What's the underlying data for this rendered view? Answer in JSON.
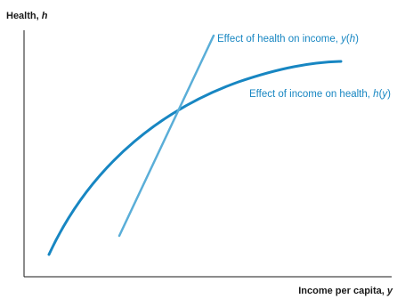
{
  "axes": {
    "y_label": "Health, ",
    "y_var": "h",
    "x_label": "Income per capita, ",
    "x_var": "y",
    "color": "#1a1a1a"
  },
  "curves": {
    "health_on_income": {
      "label_text": "Effect of health on income, ",
      "label_func": "y",
      "label_paren_open": "(",
      "label_arg": "h",
      "label_paren_close": ")",
      "color": "#5aaed8"
    },
    "income_on_health": {
      "label_text": "Effect of income on health, ",
      "label_func": "h",
      "label_paren_open": "(",
      "label_arg": "y",
      "label_paren_close": ")",
      "color": "#1786c2"
    }
  }
}
